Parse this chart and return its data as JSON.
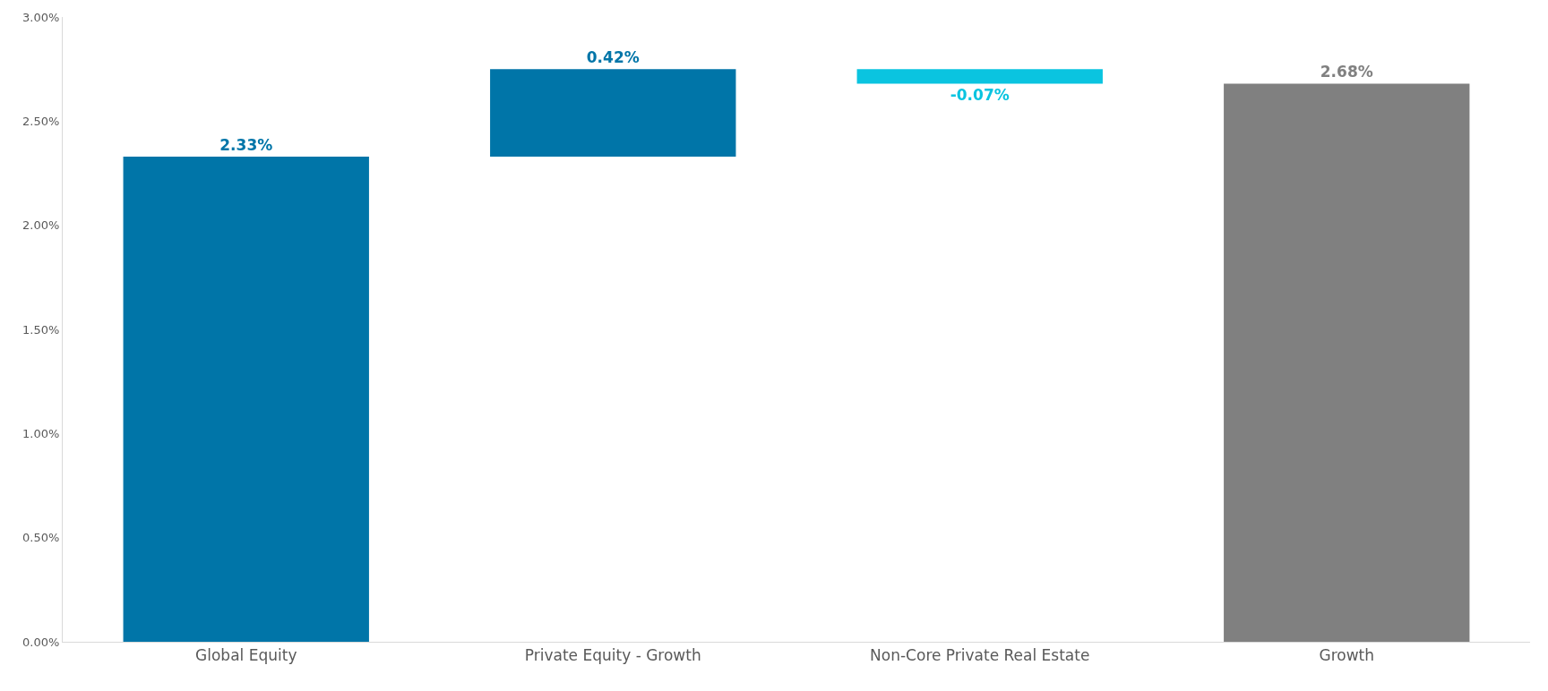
{
  "chart_data": {
    "type": "bar",
    "categories": [
      "Global Equity",
      "Private Equity - Growth",
      "Non-Core Private Real Estate",
      "Growth"
    ],
    "values": [
      2.33,
      0.42,
      -0.07,
      2.68
    ],
    "base": [
      0,
      2.33,
      2.75,
      0
    ],
    "colors": [
      "#0075a8",
      "#0075a8",
      "#0ac4e0",
      "#808080"
    ],
    "value_labels": [
      "2.33%",
      "0.42%",
      "-0.07%",
      "2.68%"
    ],
    "ylim": [
      0,
      3
    ],
    "yticks": [
      {
        "value": 0,
        "label": "0.00%"
      },
      {
        "value": 0.5,
        "label": "0.50%"
      },
      {
        "value": 1,
        "label": "1.00%"
      },
      {
        "value": 1.5,
        "label": "1.50%"
      },
      {
        "value": 2,
        "label": "2.00%"
      },
      {
        "value": 2.5,
        "label": "2.50%"
      },
      {
        "value": 3,
        "label": "3.00%"
      }
    ]
  }
}
